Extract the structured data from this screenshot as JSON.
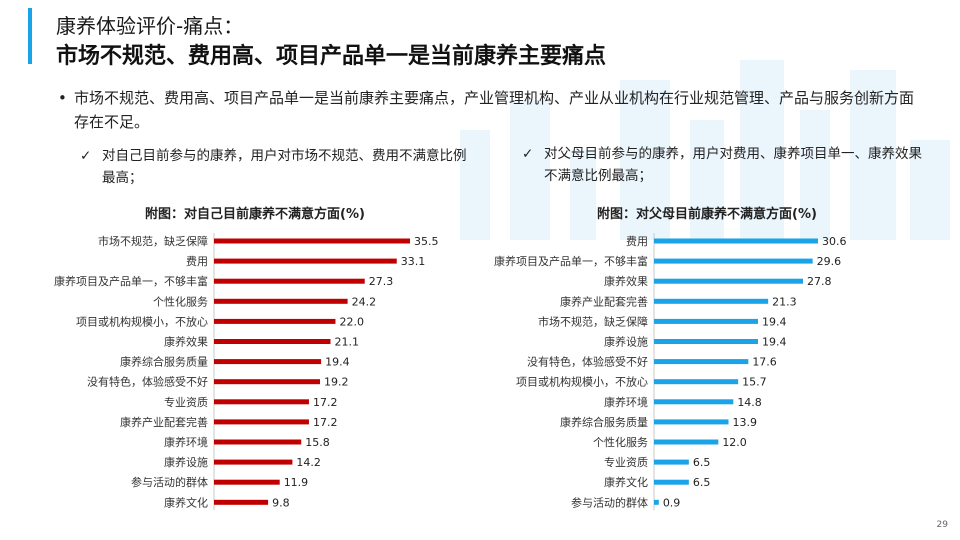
{
  "header": {
    "title_line1": "康养体验评价-痛点：",
    "title_line2": "市场不规范、费用高、项目产品单一是当前康养主要痛点"
  },
  "bullet": {
    "marker": "•",
    "text": "市场不规范、费用高、项目产品单一是当前康养主要痛点，产业管理机构、产业从业机构在行业规范管理、产品与服务创新方面存在不足。"
  },
  "notes": {
    "check": "✓",
    "left": "对自己目前参与的康养，用户对市场不规范、费用不满意比例最高；",
    "right": "对父母目前参与的康养，用户对费用、康养项目单一、康养效果不满意比例最高；"
  },
  "colors": {
    "left_bar": "#c00000",
    "right_bar": "#1aa3e8",
    "accent": "#1aa3e8"
  },
  "chart_data": [
    {
      "type": "bar",
      "orientation": "horizontal",
      "title": "附图：对自己目前康养不满意方面(%)",
      "categories": [
        "市场不规范，缺乏保障",
        "费用",
        "康养项目及产品单一，不够丰富",
        "个性化服务",
        "项目或机构规模小，不放心",
        "康养效果",
        "康养综合服务质量",
        "没有特色，体验感受不好",
        "专业资质",
        "康养产业配套完善",
        "康养环境",
        "康养设施",
        "参与活动的群体",
        "康养文化"
      ],
      "values": [
        35.5,
        33.1,
        27.3,
        24.2,
        22.0,
        21.1,
        19.4,
        19.2,
        17.2,
        17.2,
        15.8,
        14.2,
        11.9,
        9.8
      ],
      "value_labels": [
        "35.5",
        "33.1",
        "27.3",
        "24.2",
        "22.0",
        "21.1",
        "19.4",
        "19.2",
        "17.2",
        "17.2",
        "15.8",
        "14.2",
        "11.9",
        "9.8"
      ],
      "xlim": [
        0,
        35.5
      ]
    },
    {
      "type": "bar",
      "orientation": "horizontal",
      "title": "附图：对父母目前康养不满意方面(%)",
      "categories": [
        "费用",
        "康养项目及产品单一，不够丰富",
        "康养效果",
        "康养产业配套完善",
        "市场不规范，缺乏保障",
        "康养设施",
        "没有特色，体验感受不好",
        "项目或机构规模小，不放心",
        "康养环境",
        "康养综合服务质量",
        "个性化服务",
        "专业资质",
        "康养文化",
        "参与活动的群体"
      ],
      "values": [
        30.6,
        29.6,
        27.8,
        21.3,
        19.4,
        19.4,
        17.6,
        15.7,
        14.8,
        13.9,
        12.0,
        6.5,
        6.5,
        0.9
      ],
      "value_labels": [
        "30.6",
        "29.6",
        "27.8",
        "21.3",
        "19.4",
        "19.4",
        "17.6",
        "15.7",
        "14.8",
        "13.9",
        "12.0",
        "6.5",
        "6.5",
        "0.9"
      ],
      "xlim": [
        0,
        30.6
      ]
    }
  ],
  "footer": {
    "page_number": "29"
  }
}
